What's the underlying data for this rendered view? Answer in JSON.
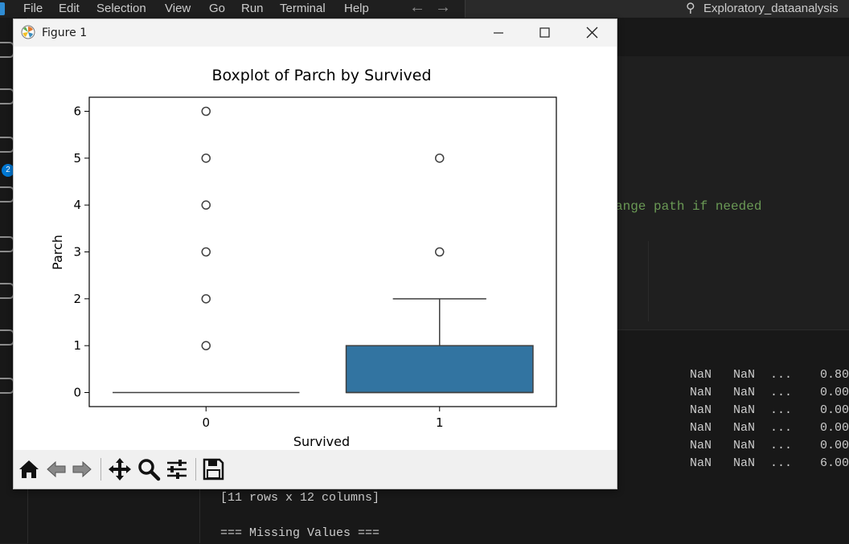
{
  "menubar": {
    "items": [
      "File",
      "Edit",
      "Selection",
      "View",
      "Go",
      "Run",
      "Terminal",
      "Help"
    ],
    "search_label": "Exploratory_dataanalysis"
  },
  "activity": {
    "badge": "2"
  },
  "editor": {
    "visible_text": "ange path if needed"
  },
  "terminal": {
    "rows": [
      [
        "NaN",
        "NaN",
        "...",
        "0.80"
      ],
      [
        "NaN",
        "NaN",
        "...",
        "0.00"
      ],
      [
        "NaN",
        "NaN",
        "...",
        "0.00"
      ],
      [
        "NaN",
        "NaN",
        "...",
        "0.00"
      ],
      [
        "NaN",
        "NaN",
        "...",
        "0.00"
      ],
      [
        "NaN",
        "NaN",
        "...",
        "6.00"
      ]
    ],
    "shape_line": "[11 rows x 12 columns]",
    "section_line": "=== Missing Values ==="
  },
  "figure": {
    "window_title": "Figure 1",
    "toolbar_icons": [
      "home-icon",
      "back-icon",
      "forward-icon",
      "pan-icon",
      "zoom-icon",
      "configure-subplots-icon",
      "save-icon"
    ]
  },
  "chart_data": {
    "type": "box",
    "title": "Boxplot of Parch by Survived",
    "xlabel": "Survived",
    "ylabel": "Parch",
    "categories": [
      "0",
      "1"
    ],
    "ylim": [
      -0.3,
      6.3
    ],
    "yticks": [
      0,
      1,
      2,
      3,
      4,
      5,
      6
    ],
    "boxes": [
      {
        "category": "0",
        "q1": 0,
        "median": 0,
        "q3": 0,
        "whisker_low": 0,
        "whisker_high": 0,
        "fliers": [
          1,
          2,
          3,
          4,
          5,
          6
        ],
        "color": "#1f77b4"
      },
      {
        "category": "1",
        "q1": 0,
        "median": 0,
        "q3": 1,
        "whisker_low": 0,
        "whisker_high": 2,
        "fliers": [
          3,
          5
        ],
        "color": "#3274a1"
      }
    ],
    "grid": false
  }
}
